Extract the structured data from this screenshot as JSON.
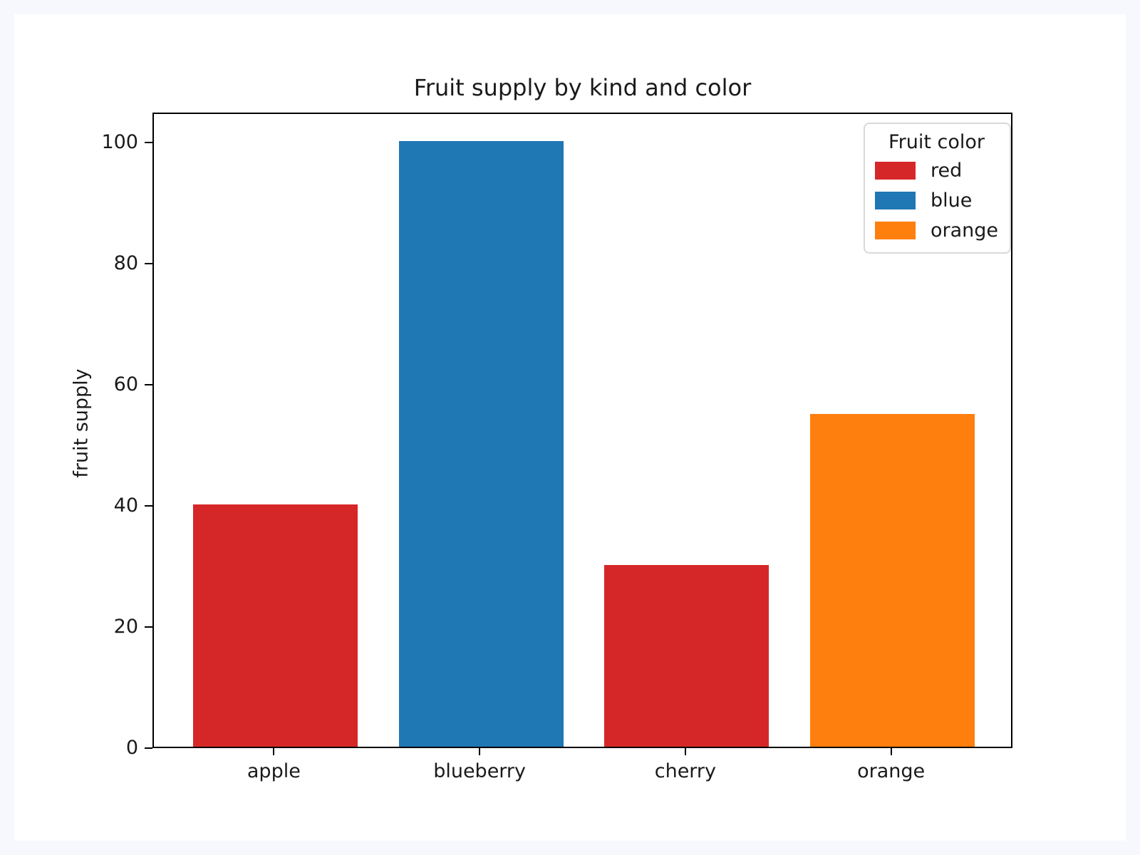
{
  "page": {
    "background_color": "#f7f8fd",
    "figure_background_color": "#ffffff"
  },
  "chart_data": {
    "type": "bar",
    "title": "Fruit supply by kind and color",
    "xlabel": "",
    "ylabel": "fruit supply",
    "categories": [
      "apple",
      "blueberry",
      "cherry",
      "orange"
    ],
    "values": [
      40,
      100,
      30,
      55
    ],
    "bar_colors": [
      "#d62728",
      "#1f77b4",
      "#d62728",
      "#ff7f0e"
    ],
    "ylim": [
      0,
      105
    ],
    "yticks": [
      0,
      20,
      40,
      60,
      80,
      100
    ],
    "grid": false,
    "legend": {
      "title": "Fruit color",
      "position": "upper right",
      "entries": [
        {
          "label": "red",
          "color": "#d62728"
        },
        {
          "label": "blue",
          "color": "#1f77b4"
        },
        {
          "label": "orange",
          "color": "#ff7f0e"
        }
      ]
    }
  }
}
